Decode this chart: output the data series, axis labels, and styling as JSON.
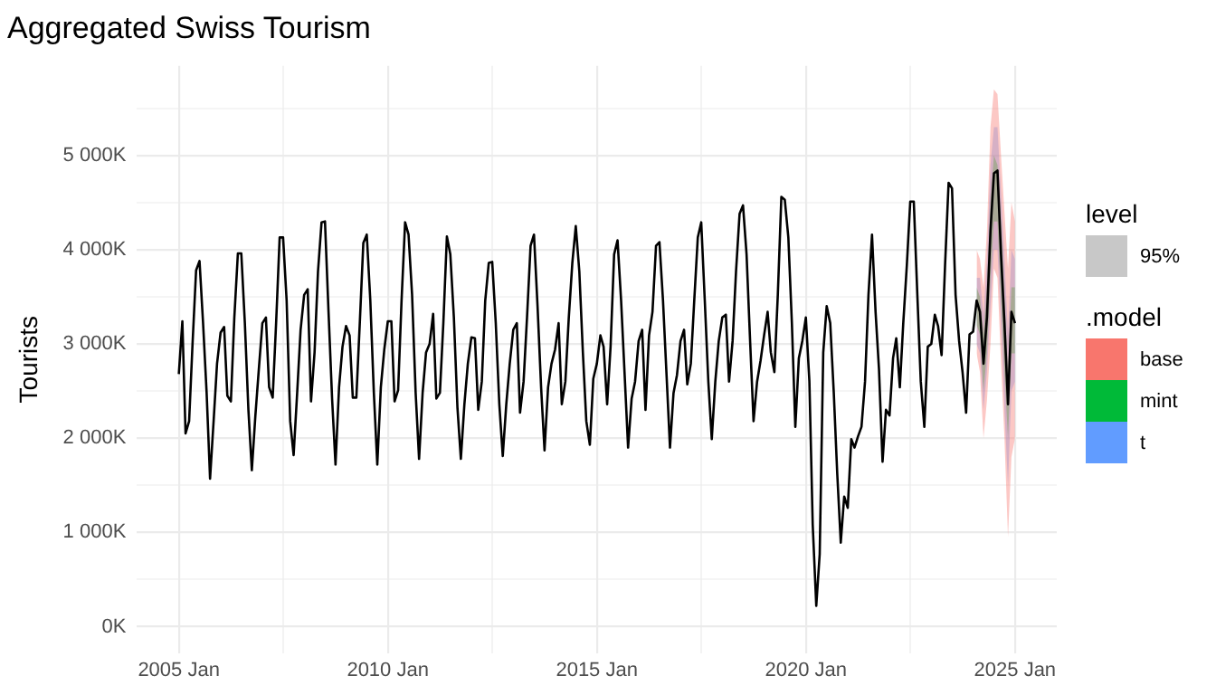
{
  "chart_data": {
    "type": "line",
    "title": "Aggregated Swiss Tourism",
    "ylabel": "Tourists",
    "legend_title": ".model",
    "legend": "right",
    "grid": true,
    "annotations": [
      "level",
      "95%"
    ],
    "xlim": [
      "2004-01",
      "2026-01"
    ],
    "xticks": [
      {
        "value": "2005-01",
        "label": "2005 Jan"
      },
      {
        "value": "2007-07",
        "label": null
      },
      {
        "value": "2010-01",
        "label": "2010 Jan"
      },
      {
        "value": "2012-07",
        "label": null
      },
      {
        "value": "2015-01",
        "label": "2015 Jan"
      },
      {
        "value": "2017-07",
        "label": null
      },
      {
        "value": "2020-01",
        "label": "2020 Jan"
      },
      {
        "value": "2022-07",
        "label": null
      },
      {
        "value": "2025-01",
        "label": "2025 Jan"
      }
    ],
    "ylim": [
      -280,
      5950
    ],
    "yticks": [
      {
        "value": 0,
        "label": "0K"
      },
      {
        "value": 500,
        "label": null
      },
      {
        "value": 1000,
        "label": "1 000K"
      },
      {
        "value": 1500,
        "label": null
      },
      {
        "value": 2000,
        "label": "2 000K"
      },
      {
        "value": 2500,
        "label": null
      },
      {
        "value": 3000,
        "label": "3 000K"
      },
      {
        "value": 3500,
        "label": null
      },
      {
        "value": 4000,
        "label": "4 000K"
      },
      {
        "value": 4500,
        "label": null
      },
      {
        "value": 5000,
        "label": "5 000K"
      },
      {
        "value": 5500,
        "label": null
      }
    ],
    "x": [
      "2005-01",
      "2005-02",
      "2005-03",
      "2005-04",
      "2005-05",
      "2005-06",
      "2005-07",
      "2005-08",
      "2005-09",
      "2005-10",
      "2005-11",
      "2005-12",
      "2006-01",
      "2006-02",
      "2006-03",
      "2006-04",
      "2006-05",
      "2006-06",
      "2006-07",
      "2006-08",
      "2006-09",
      "2006-10",
      "2006-11",
      "2006-12",
      "2007-01",
      "2007-02",
      "2007-03",
      "2007-04",
      "2007-05",
      "2007-06",
      "2007-07",
      "2007-08",
      "2007-09",
      "2007-10",
      "2007-11",
      "2007-12",
      "2008-01",
      "2008-02",
      "2008-03",
      "2008-04",
      "2008-05",
      "2008-06",
      "2008-07",
      "2008-08",
      "2008-09",
      "2008-10",
      "2008-11",
      "2008-12",
      "2009-01",
      "2009-02",
      "2009-03",
      "2009-04",
      "2009-05",
      "2009-06",
      "2009-07",
      "2009-08",
      "2009-09",
      "2009-10",
      "2009-11",
      "2009-12",
      "2010-01",
      "2010-02",
      "2010-03",
      "2010-04",
      "2010-05",
      "2010-06",
      "2010-07",
      "2010-08",
      "2010-09",
      "2010-10",
      "2010-11",
      "2010-12",
      "2011-01",
      "2011-02",
      "2011-03",
      "2011-04",
      "2011-05",
      "2011-06",
      "2011-07",
      "2011-08",
      "2011-09",
      "2011-10",
      "2011-11",
      "2011-12",
      "2012-01",
      "2012-02",
      "2012-03",
      "2012-04",
      "2012-05",
      "2012-06",
      "2012-07",
      "2012-08",
      "2012-09",
      "2012-10",
      "2012-11",
      "2012-12",
      "2013-01",
      "2013-02",
      "2013-03",
      "2013-04",
      "2013-05",
      "2013-06",
      "2013-07",
      "2013-08",
      "2013-09",
      "2013-10",
      "2013-11",
      "2013-12",
      "2014-01",
      "2014-02",
      "2014-03",
      "2014-04",
      "2014-05",
      "2014-06",
      "2014-07",
      "2014-08",
      "2014-09",
      "2014-10",
      "2014-11",
      "2014-12",
      "2015-01",
      "2015-02",
      "2015-03",
      "2015-04",
      "2015-05",
      "2015-06",
      "2015-07",
      "2015-08",
      "2015-09",
      "2015-10",
      "2015-11",
      "2015-12",
      "2016-01",
      "2016-02",
      "2016-03",
      "2016-04",
      "2016-05",
      "2016-06",
      "2016-07",
      "2016-08",
      "2016-09",
      "2016-10",
      "2016-11",
      "2016-12",
      "2017-01",
      "2017-02",
      "2017-03",
      "2017-04",
      "2017-05",
      "2017-06",
      "2017-07",
      "2017-08",
      "2017-09",
      "2017-10",
      "2017-11",
      "2017-12",
      "2018-01",
      "2018-02",
      "2018-03",
      "2018-04",
      "2018-05",
      "2018-06",
      "2018-07",
      "2018-08",
      "2018-09",
      "2018-10",
      "2018-11",
      "2018-12",
      "2019-01",
      "2019-02",
      "2019-03",
      "2019-04",
      "2019-05",
      "2019-06",
      "2019-07",
      "2019-08",
      "2019-09",
      "2019-10",
      "2019-11",
      "2019-12",
      "2020-01",
      "2020-02",
      "2020-03",
      "2020-04",
      "2020-05",
      "2020-06",
      "2020-07",
      "2020-08",
      "2020-09",
      "2020-10",
      "2020-11",
      "2020-12",
      "2021-01",
      "2021-02",
      "2021-03",
      "2021-04",
      "2021-05",
      "2021-06",
      "2021-07",
      "2021-08",
      "2021-09",
      "2021-10",
      "2021-11",
      "2021-12",
      "2022-01",
      "2022-02",
      "2022-03",
      "2022-04",
      "2022-05",
      "2022-06",
      "2022-07",
      "2022-08",
      "2022-09",
      "2022-10",
      "2022-11",
      "2022-12",
      "2023-01",
      "2023-02",
      "2023-03",
      "2023-04",
      "2023-05",
      "2023-06",
      "2023-07",
      "2023-08",
      "2023-09",
      "2023-10",
      "2023-11",
      "2023-12",
      "2024-01",
      "2024-02",
      "2024-03",
      "2024-04",
      "2024-05",
      "2024-06",
      "2024-07",
      "2024-08",
      "2024-09",
      "2024-10",
      "2024-11",
      "2024-12",
      "2025-01"
    ],
    "series": [
      {
        "color": "#000000",
        "values": [
          2680,
          3240,
          2050,
          2180,
          3000,
          3780,
          3880,
          3220,
          2480,
          1570,
          2180,
          2790,
          3120,
          3180,
          2450,
          2390,
          3280,
          3960,
          3960,
          3220,
          2300,
          1660,
          2240,
          2730,
          3220,
          3280,
          2540,
          2430,
          3220,
          4130,
          4130,
          3460,
          2180,
          1820,
          2480,
          3150,
          3520,
          3580,
          2390,
          2910,
          3770,
          4290,
          4300,
          3340,
          2420,
          1720,
          2540,
          2970,
          3190,
          3090,
          2430,
          2430,
          3220,
          4070,
          4160,
          3460,
          2480,
          1720,
          2540,
          2940,
          3240,
          3240,
          2390,
          2510,
          3460,
          4290,
          4160,
          3520,
          2480,
          1780,
          2480,
          2910,
          3000,
          3320,
          2420,
          2480,
          3220,
          4140,
          3950,
          3280,
          2330,
          1780,
          2360,
          2790,
          3070,
          3060,
          2300,
          2600,
          3460,
          3860,
          3870,
          3220,
          2360,
          1810,
          2360,
          2790,
          3150,
          3220,
          2270,
          2600,
          3280,
          4040,
          4160,
          3400,
          2540,
          1870,
          2540,
          2790,
          2940,
          3220,
          2360,
          2600,
          3280,
          3860,
          4250,
          3770,
          2910,
          2180,
          1930,
          2630,
          2790,
          3090,
          2970,
          2360,
          2970,
          3950,
          4100,
          3460,
          2670,
          1900,
          2420,
          2600,
          3030,
          3150,
          2300,
          3090,
          3340,
          4040,
          4080,
          3460,
          2670,
          1900,
          2480,
          2670,
          3030,
          3150,
          2570,
          2790,
          3460,
          4130,
          4290,
          3460,
          2600,
          1990,
          2600,
          3030,
          3280,
          3310,
          2600,
          3030,
          3770,
          4380,
          4470,
          3950,
          3030,
          2180,
          2600,
          2820,
          3090,
          3340,
          2910,
          2700,
          3520,
          4560,
          4530,
          4130,
          3220,
          2120,
          2850,
          3030,
          3280,
          2600,
          1080,
          220,
          770,
          2910,
          3400,
          3220,
          2480,
          1630,
          890,
          1380,
          1260,
          1990,
          1900,
          2020,
          2120,
          2600,
          3520,
          4160,
          3340,
          2730,
          1750,
          2300,
          2240,
          2850,
          3060,
          2540,
          3220,
          3830,
          4510,
          4510,
          3520,
          2600,
          2120,
          2970,
          3000,
          3310,
          3190,
          2880,
          3830,
          4710,
          4650,
          3520,
          3030,
          2700,
          2270,
          3100,
          3130,
          3460,
          3340,
          2790,
          3280,
          4200,
          4810,
          4840,
          3950,
          3220,
          2360,
          3340,
          3220
        ]
      },
      {
        "name": "base",
        "color": "#f8766d",
        "x": [
          "2024-02",
          "2024-03",
          "2024-04",
          "2024-05",
          "2024-06",
          "2024-07",
          "2024-08",
          "2024-09",
          "2024-10",
          "2024-11",
          "2024-12",
          "2025-01"
        ],
        "values": [
          null,
          null,
          null,
          null,
          null,
          null,
          null,
          null,
          null,
          null,
          null,
          null
        ],
        "lower": [
          2900,
          2700,
          2000,
          2400,
          3000,
          3800,
          3700,
          2800,
          2000,
          950,
          1800,
          2000
        ],
        "upper": [
          4000,
          3900,
          3600,
          4200,
          5300,
          5700,
          5650,
          5000,
          4400,
          3800,
          4500,
          4300
        ]
      },
      {
        "name": "mint",
        "color": "#00ba38",
        "x": [
          "2024-02",
          "2024-03",
          "2024-04",
          "2024-05",
          "2024-06",
          "2024-07",
          "2024-08",
          "2024-09",
          "2024-10",
          "2024-11",
          "2024-12",
          "2025-01"
        ],
        "values": [
          null,
          null,
          null,
          null,
          null,
          null,
          null,
          null,
          null,
          null,
          null,
          null
        ],
        "lower": [
          3200,
          3100,
          2500,
          2900,
          3700,
          4300,
          4300,
          3500,
          2700,
          2000,
          2900,
          2900
        ],
        "upper": [
          3600,
          3500,
          3100,
          3600,
          4500,
          5000,
          4900,
          4300,
          3500,
          2700,
          3600,
          3600
        ]
      },
      {
        "name": "t",
        "color": "#619cff",
        "x": [
          "2024-02",
          "2024-03",
          "2024-04",
          "2024-05",
          "2024-06",
          "2024-07",
          "2024-08",
          "2024-09",
          "2024-10",
          "2024-11",
          "2024-12",
          "2025-01"
        ],
        "values": [
          null,
          null,
          null,
          null,
          null,
          null,
          null,
          null,
          null,
          null,
          null,
          null
        ],
        "lower": [
          3000,
          2900,
          2300,
          2700,
          3400,
          4000,
          4000,
          3200,
          2300,
          1500,
          2500,
          2600
        ],
        "upper": [
          3700,
          3700,
          3300,
          3900,
          4900,
          5300,
          5300,
          4600,
          3900,
          3100,
          4000,
          3900
        ]
      }
    ]
  }
}
